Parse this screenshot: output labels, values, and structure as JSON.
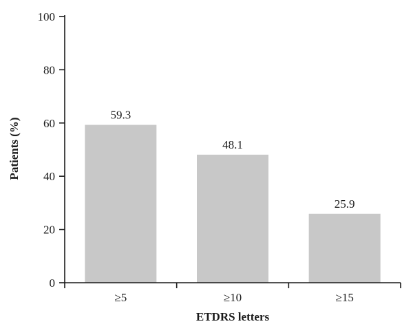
{
  "chart_data": {
    "type": "bar",
    "categories": [
      "≥5",
      "≥10",
      "≥15"
    ],
    "values": [
      59.3,
      48.1,
      25.9
    ],
    "value_labels": [
      "59.3",
      "48.1",
      "25.9"
    ],
    "xlabel": "ETDRS letters",
    "ylabel": "Patients (%)",
    "ylim": [
      0,
      100
    ],
    "yticks": [
      0,
      20,
      40,
      60,
      80,
      100
    ],
    "grid": false,
    "bar_color": "#c8c8c8"
  }
}
